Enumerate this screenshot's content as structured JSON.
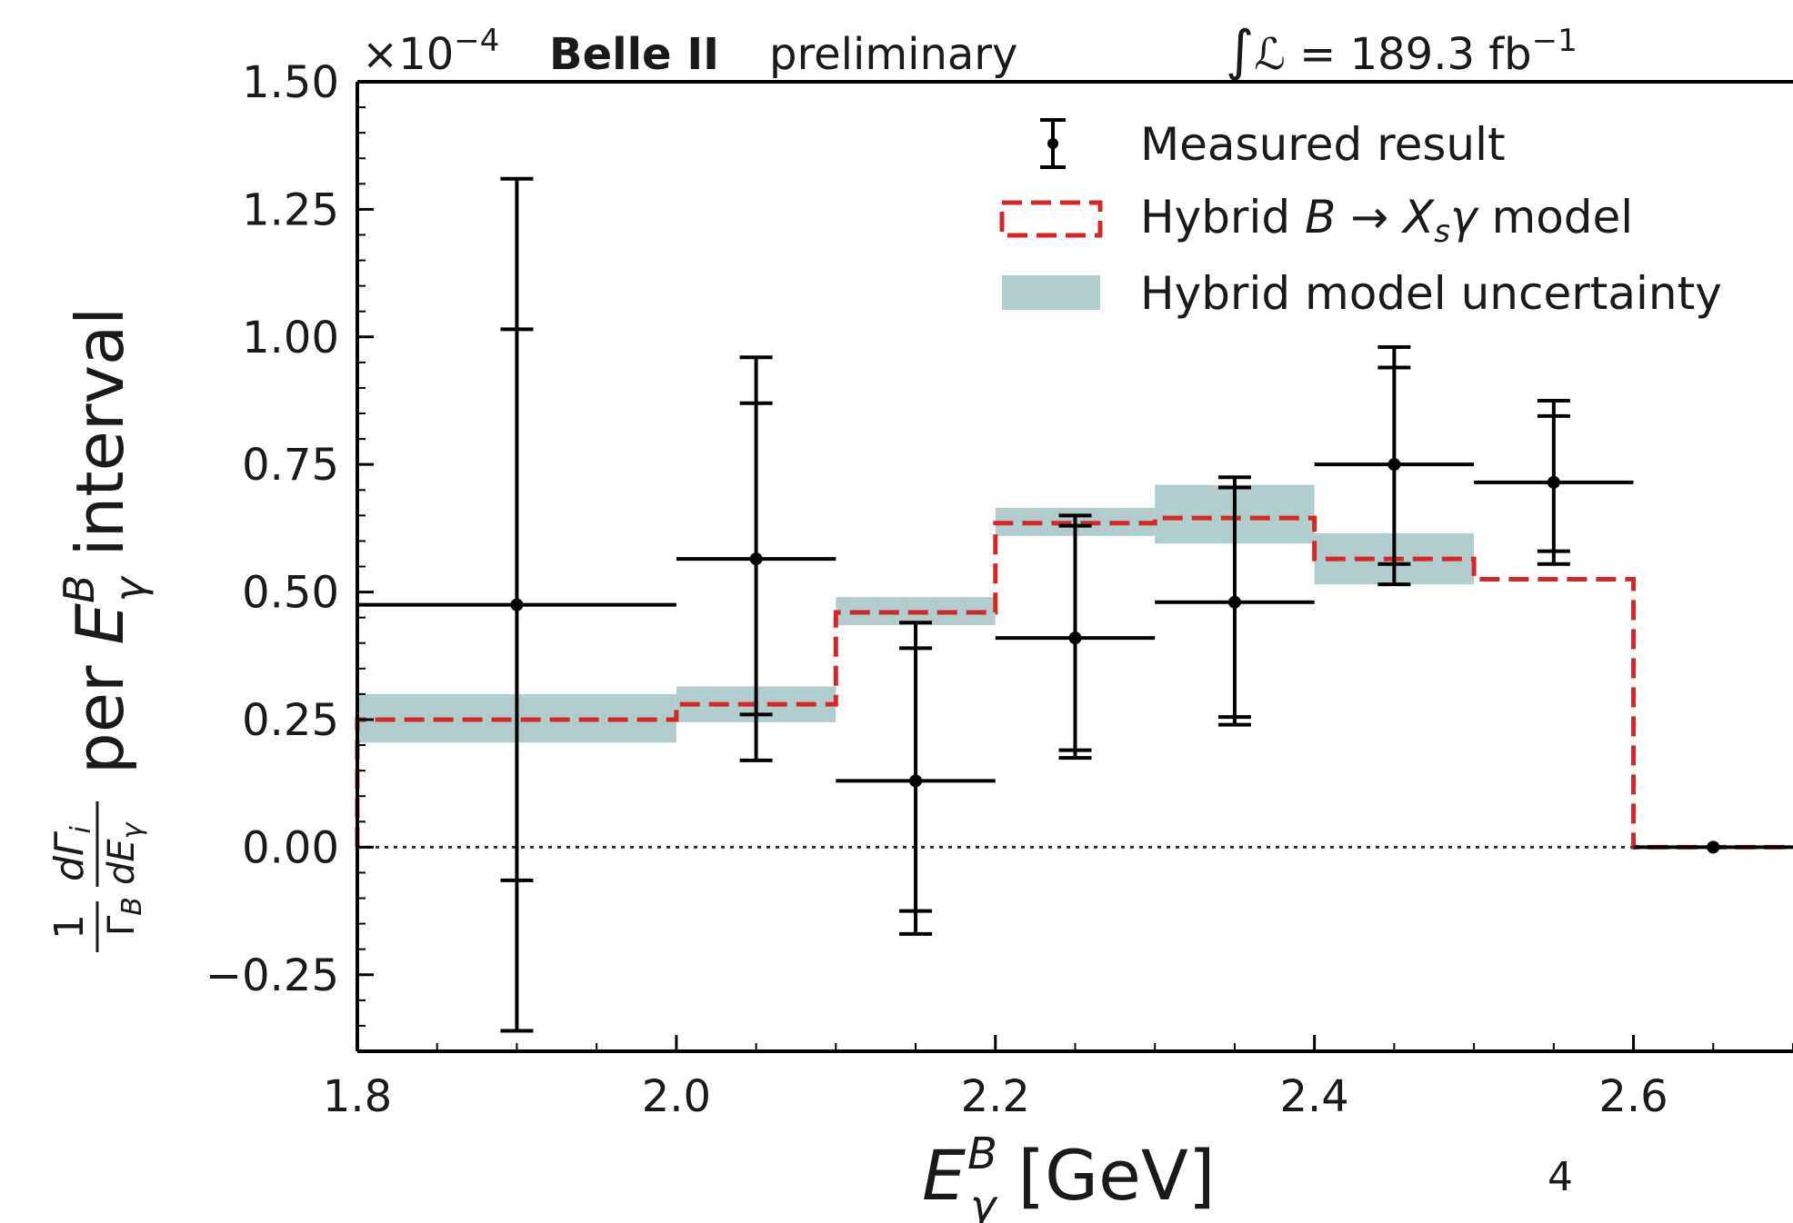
{
  "header": {
    "scale": "×10",
    "scale_exp": "−4",
    "experiment": "Belle II",
    "status": "preliminary",
    "lumi_prefix": "∫",
    "lumi_symbol": "ℒ",
    "lumi_value": " = 189.3 fb",
    "lumi_exp": "−1"
  },
  "page_number": "4",
  "chart_data": {
    "type": "scatter",
    "xlabel": "E_γ^B [GeV]",
    "ylabel": "(1/Γ_B) dΓ_i/dE_γ per E_γ^B interval",
    "xlim": [
      1.8,
      2.7
    ],
    "ylim": [
      -0.4,
      1.5
    ],
    "y_scale_factor": "×10^-4",
    "xticks": [
      1.8,
      2.0,
      2.2,
      2.4,
      2.6
    ],
    "yticks": [
      -0.25,
      0.0,
      0.25,
      0.5,
      0.75,
      1.0,
      1.25,
      1.5
    ],
    "xtick_labels": [
      "1.8",
      "2.0",
      "2.2",
      "2.4",
      "2.6"
    ],
    "ytick_labels": [
      "−0.25",
      "0.00",
      "0.25",
      "0.50",
      "0.75",
      "1.00",
      "1.25",
      "1.50"
    ],
    "zero_line": true,
    "legend_position": "top-right",
    "series": [
      {
        "name": "Measured result",
        "kind": "points-with-errorbars",
        "color": "#000000",
        "points": [
          {
            "x": 1.9,
            "xlo": 1.8,
            "xhi": 2.0,
            "y": 0.475,
            "inner": [
              -0.065,
              1.015
            ],
            "outer": [
              -0.36,
              1.31
            ]
          },
          {
            "x": 2.05,
            "xlo": 2.0,
            "xhi": 2.1,
            "y": 0.565,
            "inner": [
              0.26,
              0.87
            ],
            "outer": [
              0.17,
              0.96
            ]
          },
          {
            "x": 2.15,
            "xlo": 2.1,
            "xhi": 2.2,
            "y": 0.13,
            "inner": [
              -0.125,
              0.39
            ],
            "outer": [
              -0.17,
              0.44
            ]
          },
          {
            "x": 2.25,
            "xlo": 2.2,
            "xhi": 2.3,
            "y": 0.41,
            "inner": [
              0.19,
              0.63
            ],
            "outer": [
              0.175,
              0.65
            ]
          },
          {
            "x": 2.35,
            "xlo": 2.3,
            "xhi": 2.4,
            "y": 0.48,
            "inner": [
              0.255,
              0.705
            ],
            "outer": [
              0.24,
              0.725
            ]
          },
          {
            "x": 2.45,
            "xlo": 2.4,
            "xhi": 2.5,
            "y": 0.75,
            "inner": [
              0.555,
              0.94
            ],
            "outer": [
              0.515,
              0.98
            ]
          },
          {
            "x": 2.55,
            "xlo": 2.5,
            "xhi": 2.6,
            "y": 0.715,
            "inner": [
              0.58,
              0.845
            ],
            "outer": [
              0.555,
              0.875
            ]
          },
          {
            "x": 2.65,
            "xlo": 2.6,
            "xhi": 2.7,
            "y": 0.0,
            "inner": [
              0.0,
              0.0
            ],
            "outer": [
              0.0,
              0.0
            ]
          }
        ]
      },
      {
        "name": "Hybrid B → X_s γ model",
        "kind": "step",
        "color": "#d62728",
        "bins": [
          1.8,
          2.0,
          2.1,
          2.2,
          2.3,
          2.4,
          2.5,
          2.6,
          2.7
        ],
        "values": [
          0.25,
          0.28,
          0.46,
          0.635,
          0.645,
          0.565,
          0.525,
          0.0
        ]
      },
      {
        "name": "Hybrid model uncertainty",
        "kind": "band",
        "color": "#b1cdcd",
        "bins": [
          1.8,
          2.0,
          2.1,
          2.2,
          2.3,
          2.4,
          2.5,
          2.6,
          2.7
        ],
        "low": [
          0.205,
          0.245,
          0.435,
          0.61,
          0.595,
          0.515,
          0.525,
          0.0
        ],
        "high": [
          0.3,
          0.315,
          0.49,
          0.665,
          0.71,
          0.615,
          0.525,
          0.0
        ]
      }
    ],
    "legend": {
      "measured": "Measured result",
      "model_pre": "Hybrid ",
      "model_B": "B",
      "model_arrow": " → ",
      "model_X": "X",
      "model_s": "s",
      "model_gamma": "γ",
      "model_post": " model",
      "uncertainty": "Hybrid model uncertainty"
    },
    "axis_text": {
      "x_E": "E",
      "x_sup": "B",
      "x_sub": "γ",
      "x_unit": " [GeV]",
      "y_one": "1",
      "y_gamma_b": "Γ",
      "y_b": "B",
      "y_d_gamma": "dΓ",
      "y_i": "i",
      "y_d_e": "dE",
      "y_gamma": "γ",
      "y_per": "per ",
      "y_E": "E",
      "y_sup": "B",
      "y_sub": "γ",
      "y_interval": " interval"
    }
  }
}
